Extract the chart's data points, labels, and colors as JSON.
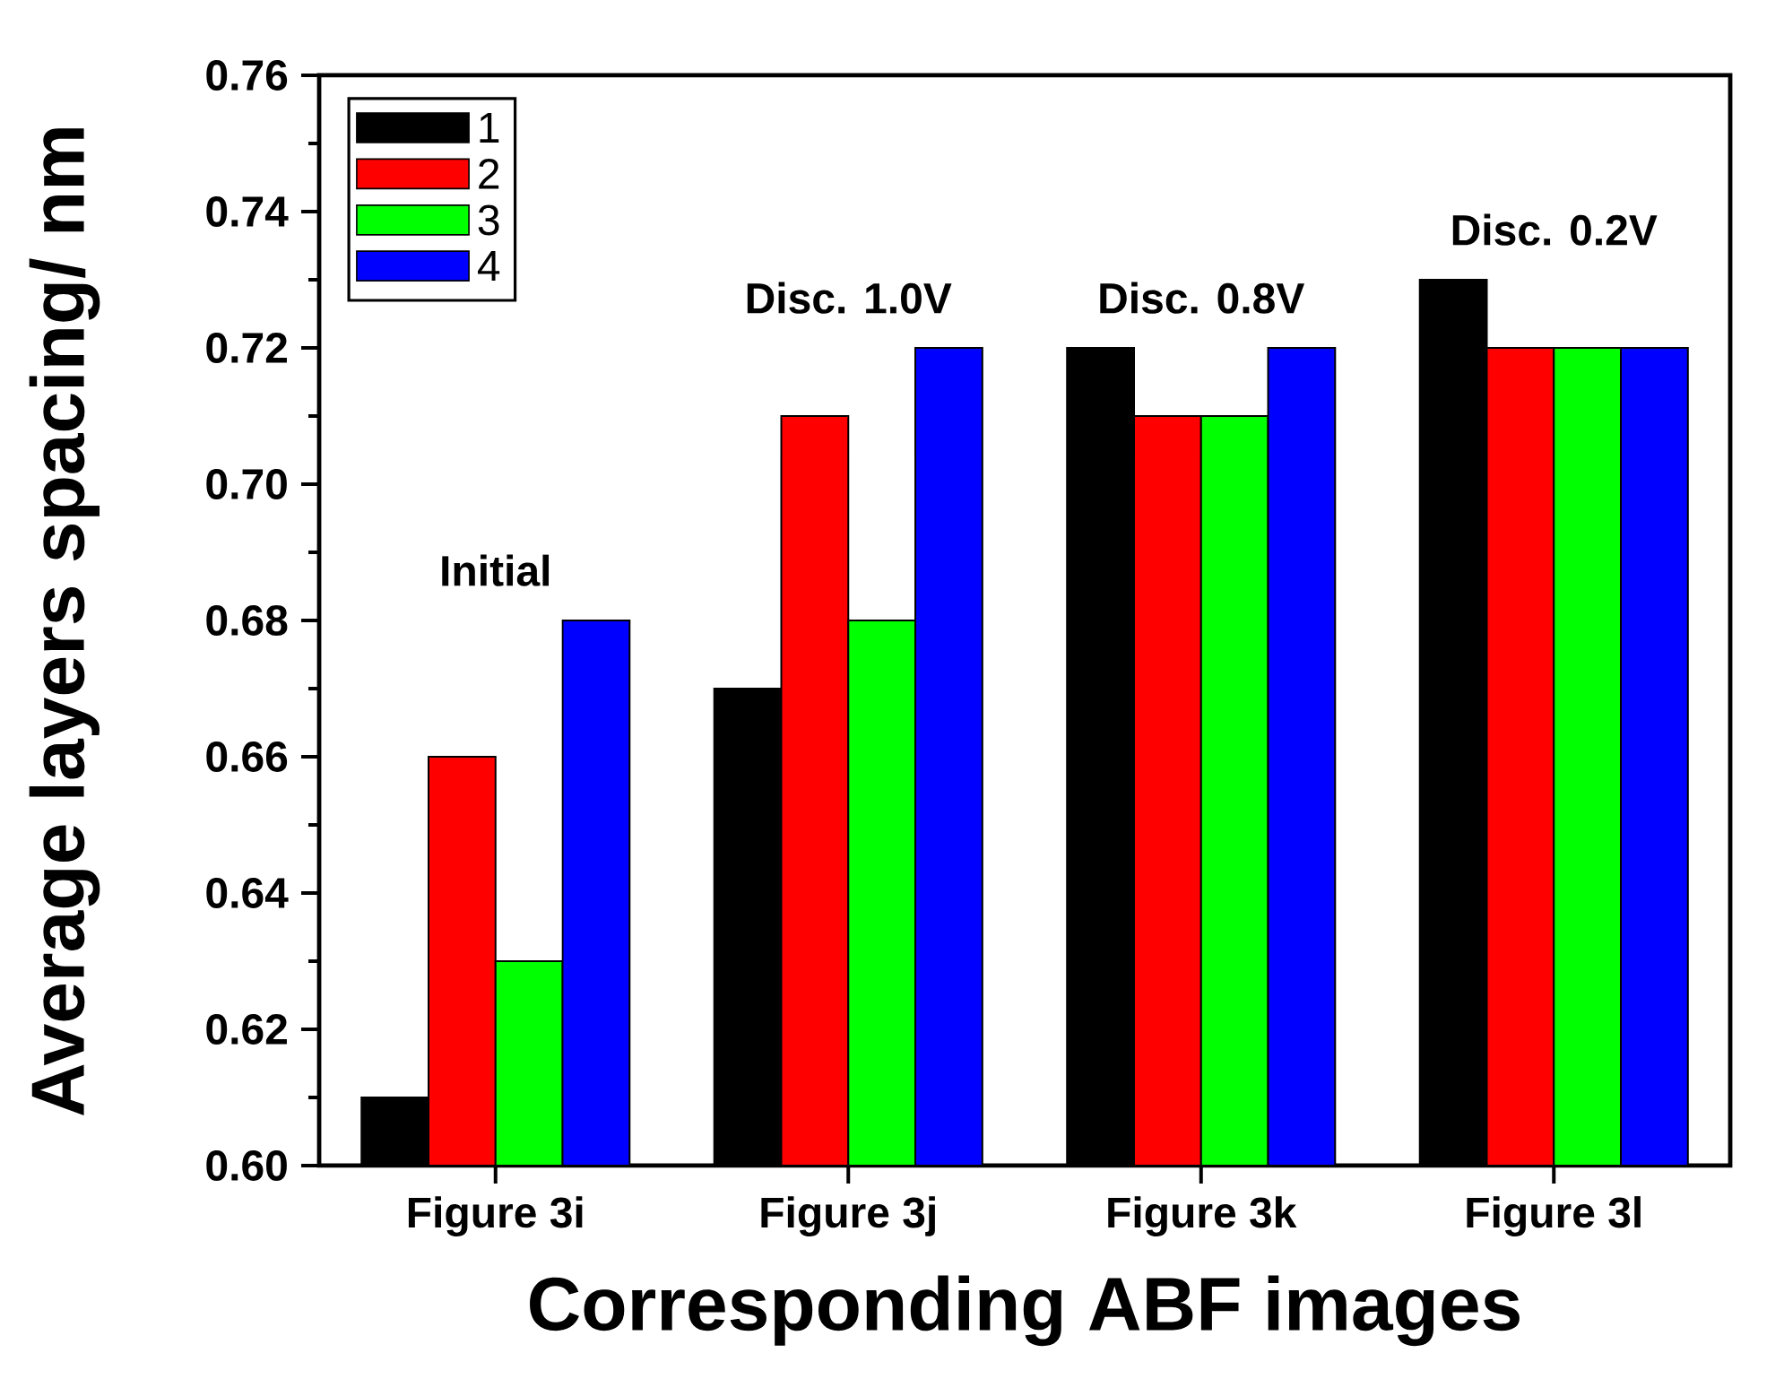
{
  "chart_data": {
    "type": "bar",
    "xlabel": "Corresponding ABF images",
    "ylabel": "Average layers spacing/ nm",
    "categories": [
      "Figure 3i",
      "Figure 3j",
      "Figure 3k",
      "Figure 3l"
    ],
    "series": [
      {
        "name": "1",
        "color": "#000000",
        "values": [
          0.61,
          0.67,
          0.72,
          0.73
        ]
      },
      {
        "name": "2",
        "color": "#ff0000",
        "values": [
          0.66,
          0.71,
          0.71,
          0.72
        ]
      },
      {
        "name": "3",
        "color": "#00ff00",
        "values": [
          0.63,
          0.68,
          0.71,
          0.72
        ]
      },
      {
        "name": "4",
        "color": "#0000ff",
        "values": [
          0.68,
          0.72,
          0.72,
          0.72
        ]
      }
    ],
    "ylim": [
      0.6,
      0.76
    ],
    "yticks": [
      {
        "value": 0.6,
        "label": "0.60"
      },
      {
        "value": 0.62,
        "label": "0.62"
      },
      {
        "value": 0.64,
        "label": "0.64"
      },
      {
        "value": 0.66,
        "label": "0.66"
      },
      {
        "value": 0.68,
        "label": "0.68"
      },
      {
        "value": 0.7,
        "label": "0.70"
      },
      {
        "value": 0.72,
        "label": "0.72"
      },
      {
        "value": 0.74,
        "label": "0.74"
      },
      {
        "value": 0.76,
        "label": "0.76"
      }
    ],
    "annotations": [
      "Initial",
      "Disc. 1.0V",
      "Disc. 0.8V",
      "Disc. 0.2V"
    ],
    "legend": "top left"
  }
}
